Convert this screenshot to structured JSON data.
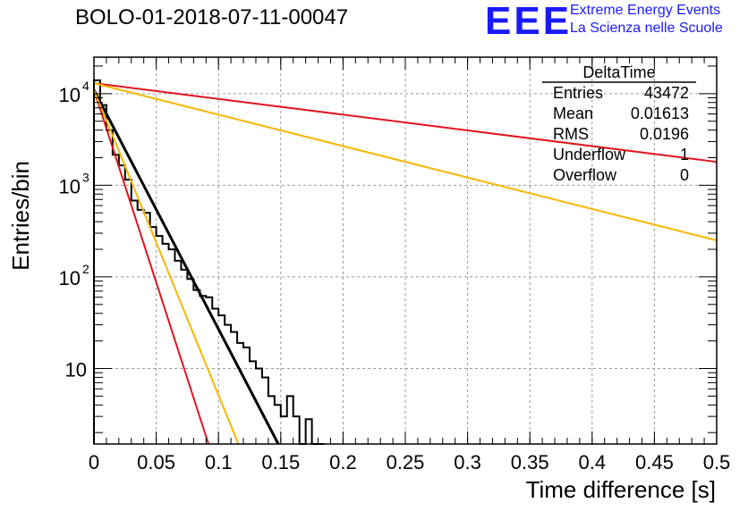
{
  "title": "BOLO-01-2018-07-11-00047",
  "logo": {
    "mark": "EEE",
    "line1": "Extreme Energy Events",
    "line2": "La Scienza nelle Scuole"
  },
  "colors": {
    "histogram": "#000000",
    "fit_black": "#000000",
    "curve_red": "#e0141e",
    "curve_orange": "#f5b800",
    "grid": "#9a9a9a"
  },
  "stats_box": {
    "title": "DeltaTime",
    "rows": [
      {
        "label": "Entries",
        "value": "43472"
      },
      {
        "label": "Mean",
        "value": "0.01613"
      },
      {
        "label": "RMS",
        "value": "0.0196"
      },
      {
        "label": "Underflow",
        "value": "1"
      },
      {
        "label": "Overflow",
        "value": "0"
      }
    ]
  },
  "chart_data": {
    "type": "line",
    "title": "BOLO-01-2018-07-11-00047",
    "xlabel": "Time difference [s]",
    "ylabel": "Entries/bin",
    "xlim": [
      0,
      0.5
    ],
    "ylim": [
      1.5,
      25000
    ],
    "yscale": "log",
    "grid": true,
    "x_ticks": [
      "0",
      "0.05",
      "0.1",
      "0.15",
      "0.2",
      "0.25",
      "0.3",
      "0.35",
      "0.4",
      "0.45",
      "0.5"
    ],
    "y_ticks": [
      {
        "value": 10,
        "label": "10"
      },
      {
        "value": 100,
        "label": "10",
        "exp": "2"
      },
      {
        "value": 1000,
        "label": "10",
        "exp": "3"
      },
      {
        "value": 10000,
        "label": "10",
        "exp": "4"
      }
    ],
    "histogram": {
      "bin_width": 0.005,
      "counts": [
        14000,
        7500,
        4000,
        2150,
        1650,
        1150,
        680,
        540,
        500,
        350,
        280,
        230,
        200,
        150,
        120,
        95,
        72,
        62,
        60,
        45,
        38,
        30,
        25,
        19,
        17,
        12,
        10,
        8,
        5,
        4,
        3,
        5,
        3,
        1.5,
        2.8,
        1.5,
        1.5
      ]
    },
    "series": [
      {
        "color": "black",
        "x": [
          0.0,
          0.148
        ],
        "y": [
          11000,
          1.5
        ]
      },
      {
        "color": "red",
        "x": [
          0.0,
          0.092
        ],
        "y": [
          11000,
          1.5
        ]
      },
      {
        "color": "orange",
        "x": [
          0.0,
          0.116
        ],
        "y": [
          11000,
          1.5
        ]
      },
      {
        "color": "red",
        "x": [
          0.0,
          0.5
        ],
        "y": [
          13000,
          1800
        ]
      },
      {
        "color": "orange",
        "x": [
          0.0,
          0.5
        ],
        "y": [
          13000,
          250
        ]
      }
    ]
  }
}
